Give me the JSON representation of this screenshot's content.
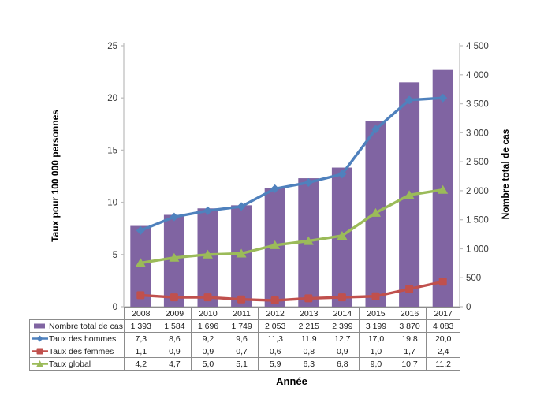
{
  "chart_data": {
    "type": "combo-bar-line",
    "title": "",
    "x_axis": {
      "title": "Année"
    },
    "left_axis": {
      "title": "Taux pour 100 000 personnes",
      "min": 0,
      "max": 25,
      "tick_labels": [
        "0",
        "5",
        "10",
        "15",
        "20",
        "25"
      ]
    },
    "right_axis": {
      "title": "Nombre total de cas",
      "min": 0,
      "max": 4500,
      "tick_labels": [
        "0",
        "500",
        "1 000",
        "1 500",
        "2 000",
        "2 500",
        "3 000",
        "3 500",
        "4 000",
        "4 500"
      ]
    },
    "categories": [
      "2008",
      "2009",
      "2010",
      "2011",
      "2012",
      "2013",
      "2014",
      "2015",
      "2016",
      "2017"
    ],
    "grid": false,
    "legend_position": "table-left",
    "colors": {
      "bar": "#8064A2",
      "men_line": "#4F81BD",
      "women_line": "#C0504D",
      "global_line": "#9BBB59",
      "axis_line": "#BFBFBF",
      "tick_text": "#3a3a3a",
      "table_border": "#8c8c8c"
    },
    "series": [
      {
        "name": "Nombre total de cas",
        "type": "bar",
        "axis": "right",
        "marker": "rect",
        "color": "#8064A2",
        "values": [
          1393,
          1584,
          1696,
          1749,
          2053,
          2215,
          2399,
          3199,
          3870,
          4083
        ],
        "labels": [
          "1 393",
          "1 584",
          "1 696",
          "1 749",
          "2 053",
          "2 215",
          "2 399",
          "3 199",
          "3 870",
          "4 083"
        ]
      },
      {
        "name": "Taux des hommes",
        "type": "line",
        "axis": "left",
        "marker": "diamond",
        "color": "#4F81BD",
        "values": [
          7.3,
          8.6,
          9.2,
          9.6,
          11.3,
          11.9,
          12.7,
          17.0,
          19.8,
          20.0
        ],
        "labels": [
          "7,3",
          "8,6",
          "9,2",
          "9,6",
          "11,3",
          "11,9",
          "12,7",
          "17,0",
          "19,8",
          "20,0"
        ]
      },
      {
        "name": "Taux des femmes",
        "type": "line",
        "axis": "left",
        "marker": "square",
        "color": "#C0504D",
        "values": [
          1.1,
          0.9,
          0.9,
          0.7,
          0.6,
          0.8,
          0.9,
          1.0,
          1.7,
          2.4
        ],
        "labels": [
          "1,1",
          "0,9",
          "0,9",
          "0,7",
          "0,6",
          "0,8",
          "0,9",
          "1,0",
          "1,7",
          "2,4"
        ]
      },
      {
        "name": "Taux global",
        "type": "line",
        "axis": "left",
        "marker": "triangle",
        "color": "#9BBB59",
        "values": [
          4.2,
          4.7,
          5.0,
          5.1,
          5.9,
          6.3,
          6.8,
          9.0,
          10.7,
          11.2
        ],
        "labels": [
          "4,2",
          "4,7",
          "5,0",
          "5,1",
          "5,9",
          "6,3",
          "6,8",
          "9,0",
          "10,7",
          "11,2"
        ]
      }
    ]
  }
}
